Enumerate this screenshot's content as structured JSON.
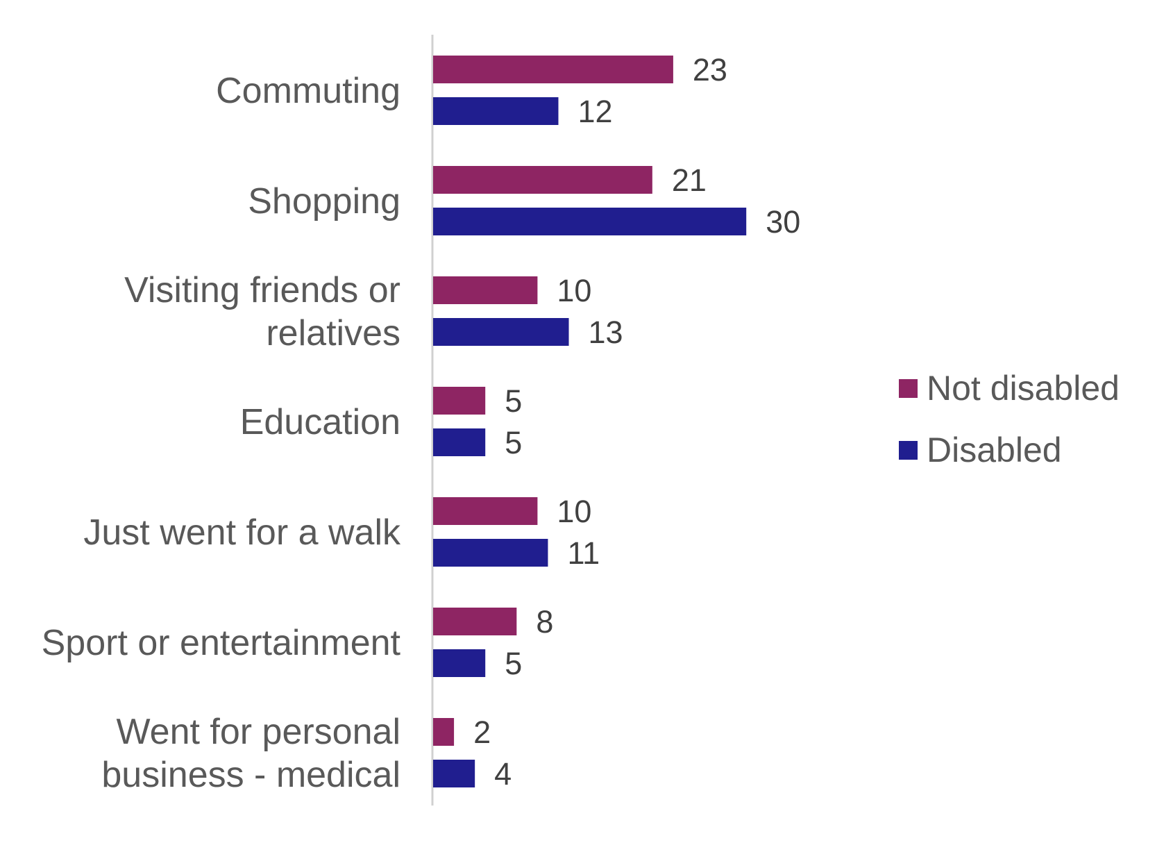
{
  "chart_data": {
    "type": "bar",
    "orientation": "horizontal",
    "categories": [
      [
        "Commuting"
      ],
      [
        "Shopping"
      ],
      [
        "Visiting friends or",
        "relatives"
      ],
      [
        "Education"
      ],
      [
        "Just went for a walk"
      ],
      [
        "Sport or entertainment"
      ],
      [
        "Went for personal",
        "business - medical"
      ]
    ],
    "series": [
      {
        "name": "Not disabled",
        "color": "#8E2563",
        "values": [
          23,
          21,
          10,
          5,
          10,
          8,
          2
        ]
      },
      {
        "name": "Disabled",
        "color": "#201E8F",
        "values": [
          12,
          30,
          13,
          5,
          11,
          5,
          4
        ]
      }
    ],
    "xlim": [
      0,
      60
    ],
    "grid": false,
    "data_labels": true,
    "legend": "right"
  }
}
